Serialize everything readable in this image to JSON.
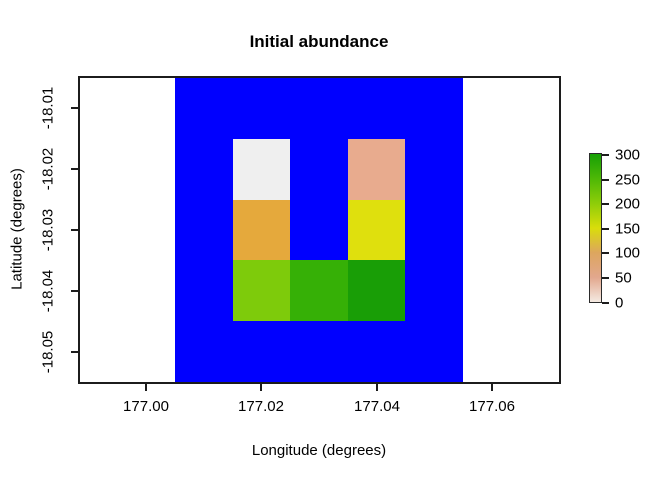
{
  "figure": {
    "title": "Initial abundance",
    "background_color": "#ffffff",
    "box_color": "#1c1c1c",
    "region_color": "#0000ff",
    "axes": {
      "x": {
        "label": "Longitude (degrees)",
        "tick_labels": [
          "177.00",
          "177.02",
          "177.04",
          "177.06"
        ]
      },
      "y": {
        "label": "Latitude (degrees)",
        "tick_labels": [
          "-18.01",
          "-18.02",
          "-18.03",
          "-18.04",
          "-18.05"
        ]
      }
    },
    "colorbar": {
      "tick_labels": [
        "300",
        "250",
        "200",
        "150",
        "100",
        "50",
        "0"
      ],
      "min": 0,
      "max": 300,
      "gradient_low_to_high": [
        "#f4eae2",
        "#e2a78d",
        "#dda65e",
        "#d9dd0b",
        "#8ecd09",
        "#4eb806",
        "#17a005"
      ]
    }
  },
  "chart_data": {
    "type": "heatmap",
    "title": "Initial abundance",
    "xlabel": "Longitude (degrees)",
    "ylabel": "Latitude (degrees)",
    "xlim": [
      176.988,
      177.072
    ],
    "ylim": [
      -18.055,
      -18.005
    ],
    "x_tick_values": [
      177.0,
      177.02,
      177.04,
      177.06
    ],
    "y_tick_values": [
      -18.01,
      -18.02,
      -18.03,
      -18.04,
      -18.05
    ],
    "study_region": {
      "x_range": [
        177.005,
        177.055
      ],
      "y_range": [
        -18.055,
        -18.005
      ],
      "fill_color": "#0000ff",
      "n_cols": 5,
      "n_rows": 5,
      "x_cell_edges": [
        177.005,
        177.015,
        177.025,
        177.035,
        177.045,
        177.055
      ],
      "y_cell_edges": [
        -18.005,
        -18.015,
        -18.025,
        -18.035,
        -18.045,
        -18.055
      ]
    },
    "values_grid_rows_top_to_bottom": [
      [
        null,
        null,
        null,
        null,
        null
      ],
      [
        null,
        5,
        null,
        55,
        null
      ],
      [
        null,
        120,
        null,
        150,
        null
      ],
      [
        null,
        205,
        250,
        290,
        null
      ],
      [
        null,
        null,
        null,
        null,
        null
      ]
    ],
    "cells": [
      {
        "row": 2,
        "col": 2,
        "value": 5,
        "color": "#efefef"
      },
      {
        "row": 2,
        "col": 4,
        "value": 55,
        "color": "#e8ab8e"
      },
      {
        "row": 3,
        "col": 2,
        "value": 120,
        "color": "#e5a93c"
      },
      {
        "row": 3,
        "col": 4,
        "value": 150,
        "color": "#dfe00d"
      },
      {
        "row": 4,
        "col": 2,
        "value": 205,
        "color": "#7ecb0b"
      },
      {
        "row": 4,
        "col": 3,
        "value": 250,
        "color": "#36b006"
      },
      {
        "row": 4,
        "col": 4,
        "value": 290,
        "color": "#199e06"
      }
    ],
    "colorbar": {
      "min": 0,
      "max": 300,
      "ticks": [
        0,
        50,
        100,
        150,
        200,
        250,
        300
      ],
      "position": "right"
    },
    "grid": false,
    "legend_position": "right"
  }
}
